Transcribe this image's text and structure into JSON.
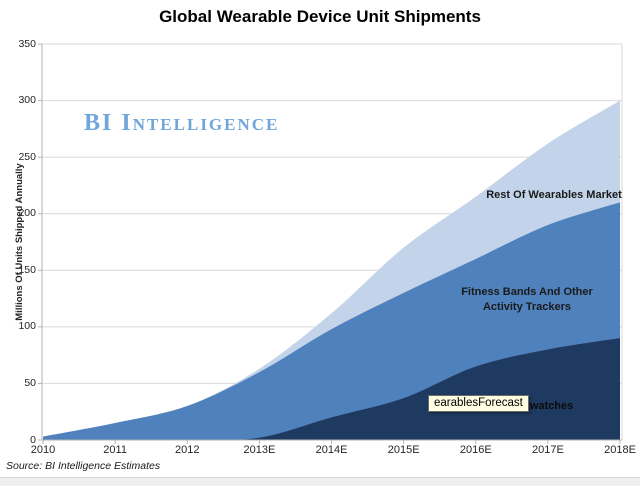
{
  "page": {
    "title": "Global Wearable Device Unit Shipments",
    "watermark": "BI Intelligence",
    "source_note": "Source: BI Intelligence Estimates"
  },
  "tooltip": {
    "text": "earablesForecast"
  },
  "chart_data": {
    "type": "area",
    "stacked": true,
    "title": "Global Wearable Device Unit Shipments",
    "xlabel": "",
    "ylabel": "Millions Of Units Shipped Annually",
    "ylim": [
      0,
      350
    ],
    "yticks": [
      0,
      50,
      100,
      150,
      200,
      250,
      300,
      350
    ],
    "grid": "horizontal",
    "legend": "in-plot-labels",
    "categories": [
      "2010",
      "2011",
      "2012",
      "2013E",
      "2014E",
      "2015E",
      "2016E",
      "2017E",
      "2018E"
    ],
    "series": [
      {
        "name": "Smartwatches",
        "visible_label": "martwatches",
        "color": "#1f3a60",
        "values": [
          0,
          0,
          0,
          2,
          20,
          37,
          65,
          80,
          90
        ]
      },
      {
        "name": "Fitness Bands And Other Activity Trackers",
        "label_line1": "Fitness Bands And Other",
        "label_line2": "Activity Trackers",
        "color": "#4f81bd",
        "values": [
          3,
          15,
          30,
          58,
          78,
          93,
          95,
          110,
          120
        ]
      },
      {
        "name": "Rest Of Wearables Market",
        "color": "#c3d4ea",
        "values": [
          0,
          0,
          0,
          3,
          14,
          40,
          55,
          72,
          90
        ]
      }
    ],
    "stacked_totals": [
      3,
      15,
      30,
      63,
      112,
      170,
      215,
      262,
      300
    ],
    "colors": {
      "gridline": "#d9d9d9",
      "axis": "#b3b3b3",
      "watermark_blue": "#70a6da"
    }
  }
}
